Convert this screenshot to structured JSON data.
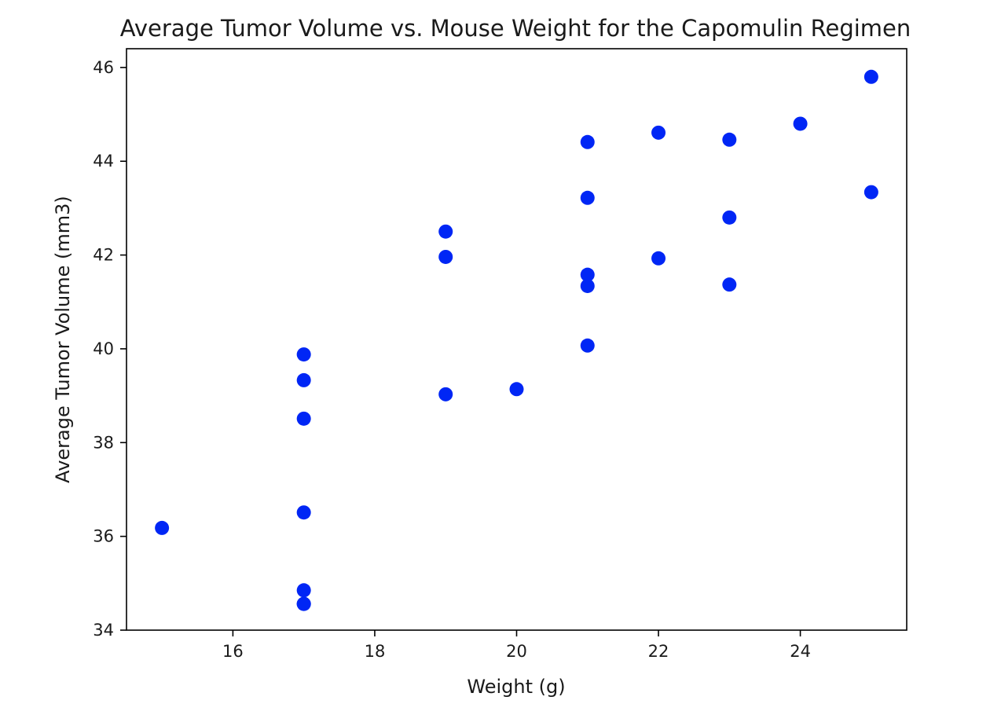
{
  "chart_data": {
    "type": "scatter",
    "title": "Average Tumor Volume vs. Mouse Weight for the Capomulin Regimen",
    "xlabel": "Weight (g)",
    "ylabel": "Average Tumor Volume (mm3)",
    "xlim": [
      14.5,
      25.5
    ],
    "ylim": [
      34,
      46.4
    ],
    "xticks": [
      16,
      18,
      20,
      22,
      24
    ],
    "yticks": [
      34,
      36,
      38,
      40,
      42,
      44,
      46
    ],
    "grid": false,
    "marker_color": "#0026f5",
    "series": [
      {
        "name": "Capomulin",
        "x": [
          15,
          17,
          17,
          17,
          17,
          17,
          17,
          17,
          19,
          19,
          19,
          20,
          21,
          21,
          21,
          21,
          21,
          22,
          22,
          23,
          23,
          23,
          24,
          25,
          25
        ],
        "y": [
          36.18,
          34.56,
          34.85,
          36.51,
          38.51,
          39.33,
          39.88,
          34.56,
          42.5,
          41.96,
          39.03,
          39.14,
          44.41,
          43.22,
          41.58,
          41.34,
          40.07,
          44.61,
          41.93,
          44.46,
          42.8,
          41.37,
          44.8,
          45.8,
          43.34
        ]
      }
    ]
  }
}
